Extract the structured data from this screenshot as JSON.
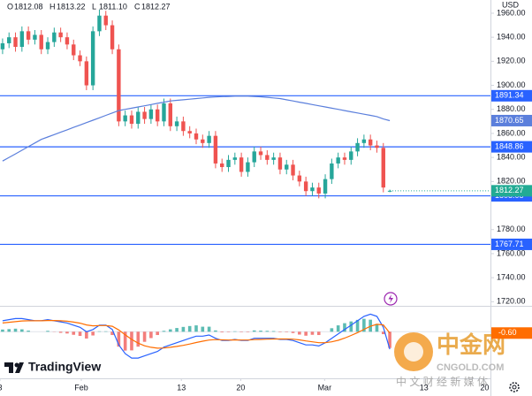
{
  "chart_data": {
    "type": "candlestick",
    "currency": "USD",
    "ohlc_legend": [
      {
        "key": "O",
        "value": "1812.08"
      },
      {
        "key": "H",
        "value": "1813.22"
      },
      {
        "key": "L",
        "value": "1811.10"
      },
      {
        "key": "C",
        "value": "1812.27"
      }
    ],
    "open": [
      1930,
      1935,
      1940,
      1932,
      1945,
      1938,
      1942,
      1930,
      1936,
      1944,
      1940,
      1934,
      1925,
      1920,
      1900,
      1945,
      1958,
      1950,
      1930,
      1870,
      1875,
      1868,
      1878,
      1872,
      1880,
      1870,
      1885,
      1866,
      1870,
      1862,
      1860,
      1855,
      1852,
      1858,
      1835,
      1832,
      1838,
      1840,
      1828,
      1836,
      1845,
      1842,
      1838,
      1840,
      1830,
      1834,
      1825,
      1820,
      1812,
      1815,
      1810,
      1822,
      1835,
      1840,
      1838,
      1845,
      1852,
      1855,
      1850,
      1848,
      1812.08
    ],
    "high": [
      1939,
      1944,
      1944,
      1949,
      1949,
      1946,
      1946,
      1940,
      1948,
      1948,
      1944,
      1938,
      1929,
      1924,
      1949,
      1963,
      1962,
      1954,
      1934,
      1879,
      1879,
      1882,
      1882,
      1884,
      1884,
      1889,
      1889,
      1874,
      1874,
      1866,
      1864,
      1859,
      1862,
      1862,
      1839,
      1842,
      1844,
      1844,
      1840,
      1849,
      1849,
      1846,
      1844,
      1844,
      1838,
      1838,
      1829,
      1824,
      1819,
      1819,
      1826,
      1839,
      1844,
      1844,
      1849,
      1856,
      1859,
      1859,
      1854,
      1852,
      1813.22
    ],
    "low": [
      1926,
      1931,
      1928,
      1928,
      1934,
      1934,
      1926,
      1926,
      1932,
      1936,
      1930,
      1921,
      1916,
      1896,
      1896,
      1941,
      1946,
      1926,
      1866,
      1866,
      1864,
      1864,
      1868,
      1868,
      1866,
      1866,
      1862,
      1862,
      1858,
      1856,
      1851,
      1848,
      1848,
      1831,
      1828,
      1828,
      1834,
      1824,
      1824,
      1832,
      1838,
      1834,
      1834,
      1826,
      1826,
      1821,
      1816,
      1808,
      1808,
      1806,
      1806,
      1818,
      1831,
      1834,
      1834,
      1841,
      1848,
      1846,
      1844,
      1811,
      1811.1
    ],
    "close": [
      1935,
      1940,
      1932,
      1945,
      1938,
      1942,
      1930,
      1936,
      1944,
      1940,
      1934,
      1925,
      1920,
      1900,
      1945,
      1958,
      1950,
      1930,
      1870,
      1875,
      1868,
      1878,
      1872,
      1880,
      1870,
      1885,
      1866,
      1870,
      1862,
      1860,
      1855,
      1852,
      1858,
      1835,
      1832,
      1838,
      1840,
      1828,
      1836,
      1845,
      1842,
      1838,
      1840,
      1830,
      1834,
      1825,
      1820,
      1812,
      1815,
      1810,
      1822,
      1835,
      1840,
      1838,
      1845,
      1852,
      1855,
      1850,
      1848,
      1815,
      1812.27
    ],
    "up_color": "#26a69a",
    "down_color": "#ef5350",
    "xlim": [
      -0.4,
      75.6
    ],
    "xticks": [
      {
        "value": -0.4,
        "label": "3"
      },
      {
        "value": 12.2,
        "label": "Feb"
      },
      {
        "value": 27.7,
        "label": "13"
      },
      {
        "value": 36.9,
        "label": "20"
      },
      {
        "value": 49.9,
        "label": "Mar"
      },
      {
        "value": 65.3,
        "label": "13"
      },
      {
        "value": 74.7,
        "label": "20"
      }
    ],
    "ylim": [
      1717.3,
      1971
    ],
    "yticks": [
      {
        "value": 1960,
        "label": "1960.00"
      },
      {
        "value": 1940,
        "label": "1940.00"
      },
      {
        "value": 1920,
        "label": "1920.00"
      },
      {
        "value": 1900,
        "label": "1900.00"
      },
      {
        "value": 1880,
        "label": "1880.00"
      },
      {
        "value": 1860,
        "label": "1860.00"
      },
      {
        "value": 1840,
        "label": "1840.00"
      },
      {
        "value": 1820,
        "label": "1820.00"
      },
      {
        "value": 1780,
        "label": "1780.00"
      },
      {
        "value": 1760,
        "label": "1760.00"
      },
      {
        "value": 1740,
        "label": "1740.00"
      },
      {
        "value": 1720,
        "label": "1720.00"
      }
    ],
    "grid": false,
    "moving_average": {
      "color": "#5b7fdc",
      "values": [
        1837,
        1840,
        1843,
        1846,
        1849,
        1852,
        1855,
        1857,
        1859,
        1861,
        1863,
        1865,
        1867,
        1869,
        1871,
        1873,
        1875,
        1877,
        1879,
        1880,
        1881,
        1882,
        1883,
        1884,
        1885,
        1886,
        1887,
        1887.5,
        1888,
        1888.5,
        1889,
        1889.5,
        1890,
        1890.3,
        1890.6,
        1890.8,
        1891,
        1891,
        1891,
        1890.8,
        1890.5,
        1890,
        1889.5,
        1889,
        1888,
        1887,
        1886,
        1885,
        1884,
        1883,
        1882,
        1881,
        1880,
        1879,
        1878,
        1877,
        1876,
        1875,
        1874,
        1872,
        1870.65
      ]
    },
    "levels": [
      1891.34,
      1848.86,
      1808.08,
      1767.71
    ],
    "level_color": "#2962ff",
    "last_price_color": "#22ab94",
    "macd": {
      "ylim": [
        -16,
        11
      ],
      "histogram": {
        "up_color": "#26a69a",
        "down_color": "#ef5350",
        "values": [
          1,
          1.2,
          1.4,
          1.1,
          0.5,
          0,
          0,
          0.4,
          -0.1,
          -0.5,
          -0.8,
          -1.4,
          -1.9,
          -3.1,
          -1.7,
          0.2,
          0.2,
          -1.5,
          -6.8,
          -8.6,
          -8.5,
          -6.8,
          -4.6,
          -2.9,
          -1.5,
          0.4,
          1.1,
          1.7,
          2.2,
          2.6,
          2.9,
          2.3,
          2.3,
          0.6,
          -0.3,
          -0.2,
          0.2,
          -0.2,
          -0.2,
          0.6,
          0.5,
          0.4,
          0.3,
          -0.2,
          -0.2,
          -0.6,
          -1.3,
          -1.8,
          -1.4,
          -1.5,
          0,
          1.6,
          2.9,
          3.9,
          4.7,
          5.4,
          5.9,
          5.5,
          3.6,
          -1.1,
          -7.4
        ]
      },
      "macd_line": {
        "color": "#2962ff",
        "values": [
          5,
          5.5,
          6,
          6,
          5.5,
          5,
          5,
          5.5,
          5,
          4.5,
          4,
          3,
          2,
          0,
          1,
          3,
          3,
          1,
          -6,
          -10,
          -12,
          -12,
          -11,
          -10,
          -9,
          -7,
          -6,
          -5,
          -4,
          -3,
          -2,
          -2,
          -1.5,
          -3,
          -4,
          -4,
          -3.5,
          -4,
          -4,
          -3,
          -3,
          -3,
          -3,
          -3.5,
          -3.5,
          -4,
          -5,
          -6,
          -6,
          -6.5,
          -5,
          -3,
          -1,
          1,
          3,
          5,
          7,
          8,
          7,
          2,
          -8
        ]
      },
      "signal_line": {
        "color": "#ff6d00",
        "values": [
          4,
          4.3,
          4.6,
          4.9,
          5,
          5,
          5,
          5.1,
          5.1,
          5,
          4.8,
          4.4,
          3.9,
          3.1,
          2.7,
          2.8,
          2.8,
          2.5,
          0.8,
          -1.4,
          -3.5,
          -5.2,
          -6.4,
          -7.1,
          -7.5,
          -7.4,
          -7.1,
          -6.7,
          -6.2,
          -5.6,
          -4.9,
          -4.3,
          -3.8,
          -3.6,
          -3.7,
          -3.8,
          -3.7,
          -3.8,
          -3.8,
          -3.6,
          -3.5,
          -3.4,
          -3.3,
          -3.3,
          -3.3,
          -3.4,
          -3.7,
          -4.2,
          -4.6,
          -5,
          -5,
          -4.6,
          -3.9,
          -2.9,
          -1.7,
          -0.4,
          1.1,
          2.5,
          3.4,
          3.1,
          -0.6
        ]
      },
      "signal_label": {
        "value": -0.6,
        "label": "-0.60"
      }
    },
    "logo": "TradingView",
    "watermark": {
      "brand": "中金网",
      "site": "CNGOLD.COM",
      "slogan": "中 文 财 经 新 媒 体"
    }
  }
}
